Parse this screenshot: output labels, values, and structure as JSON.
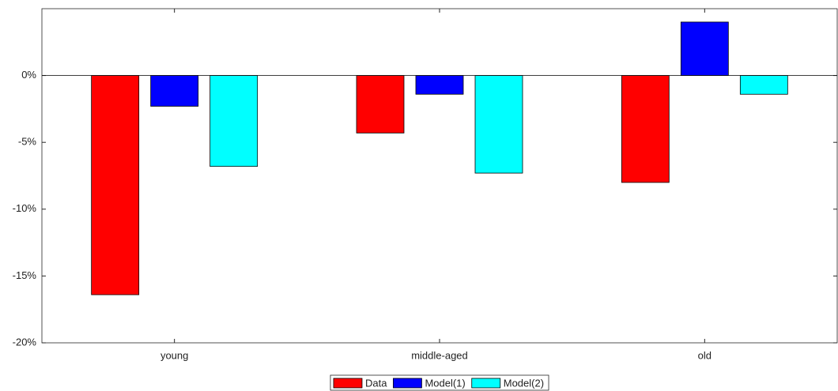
{
  "chart_data": {
    "type": "bar",
    "categories": [
      "young",
      "middle-aged",
      "old"
    ],
    "series": [
      {
        "name": "Data",
        "color": "#ff0000",
        "values": [
          -16.4,
          -4.3,
          -8.0
        ]
      },
      {
        "name": "Model(1)",
        "color": "#0000ff",
        "values": [
          -2.3,
          -1.4,
          4.0
        ]
      },
      {
        "name": "Model(2)",
        "color": "#00ffff",
        "values": [
          -6.8,
          -7.3,
          -1.4
        ]
      }
    ],
    "ylim": [
      -20,
      5
    ],
    "yticks": [
      {
        "value": -20,
        "label": "-20%"
      },
      {
        "value": -15,
        "label": "-15%"
      },
      {
        "value": -10,
        "label": "-10%"
      },
      {
        "value": -5,
        "label": "-5%"
      },
      {
        "value": 0,
        "label": "0%"
      }
    ],
    "grid": false,
    "legend": "bottom"
  }
}
